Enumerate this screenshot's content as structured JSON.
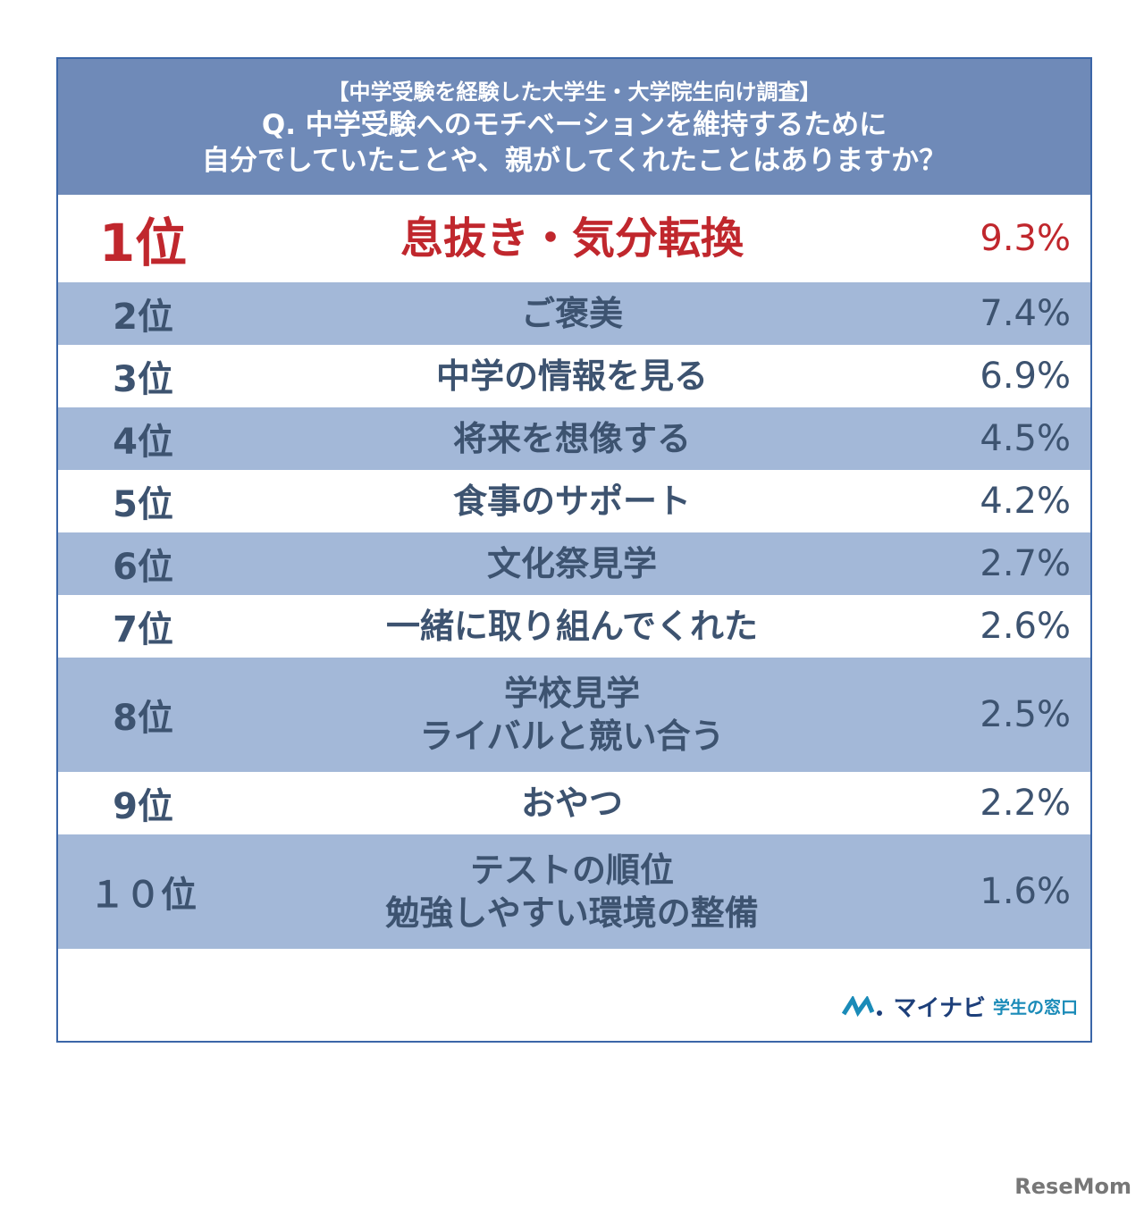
{
  "header": {
    "title": "【中学受験を経験した大学生・大学院生向け調査】",
    "question": [
      "Q. 中学受験へのモチベーションを維持するために",
      "自分でしていたことや、親がしてくれたことはありますか？"
    ]
  },
  "table": {
    "rows": [
      {
        "rank": "1位",
        "item": [
          "息抜き・気分転換"
        ],
        "percent": "9.3%"
      },
      {
        "rank": "2位",
        "item": [
          "ご褒美"
        ],
        "percent": "7.4%"
      },
      {
        "rank": "3位",
        "item": [
          "中学の情報を見る"
        ],
        "percent": "6.9%"
      },
      {
        "rank": "4位",
        "item": [
          "将来を想像する"
        ],
        "percent": "4.5%"
      },
      {
        "rank": "5位",
        "item": [
          "食事のサポート"
        ],
        "percent": "4.2%"
      },
      {
        "rank": "6位",
        "item": [
          "文化祭見学"
        ],
        "percent": "2.7%"
      },
      {
        "rank": "7位",
        "item": [
          "一緒に取り組んでくれた"
        ],
        "percent": "2.6%"
      },
      {
        "rank": "8位",
        "item": [
          "学校見学",
          "ライバルと競い合う"
        ],
        "percent": "2.5%"
      },
      {
        "rank": "9位",
        "item": [
          "おやつ"
        ],
        "percent": "2.2%"
      },
      {
        "rank": "１０位",
        "item": [
          "テストの順位",
          "勉強しやすい環境の整備"
        ],
        "percent": "1.6%"
      }
    ]
  },
  "logo": {
    "brand": "マイナビ",
    "sub": "学生の窓口"
  },
  "watermark": "ReseMom"
}
